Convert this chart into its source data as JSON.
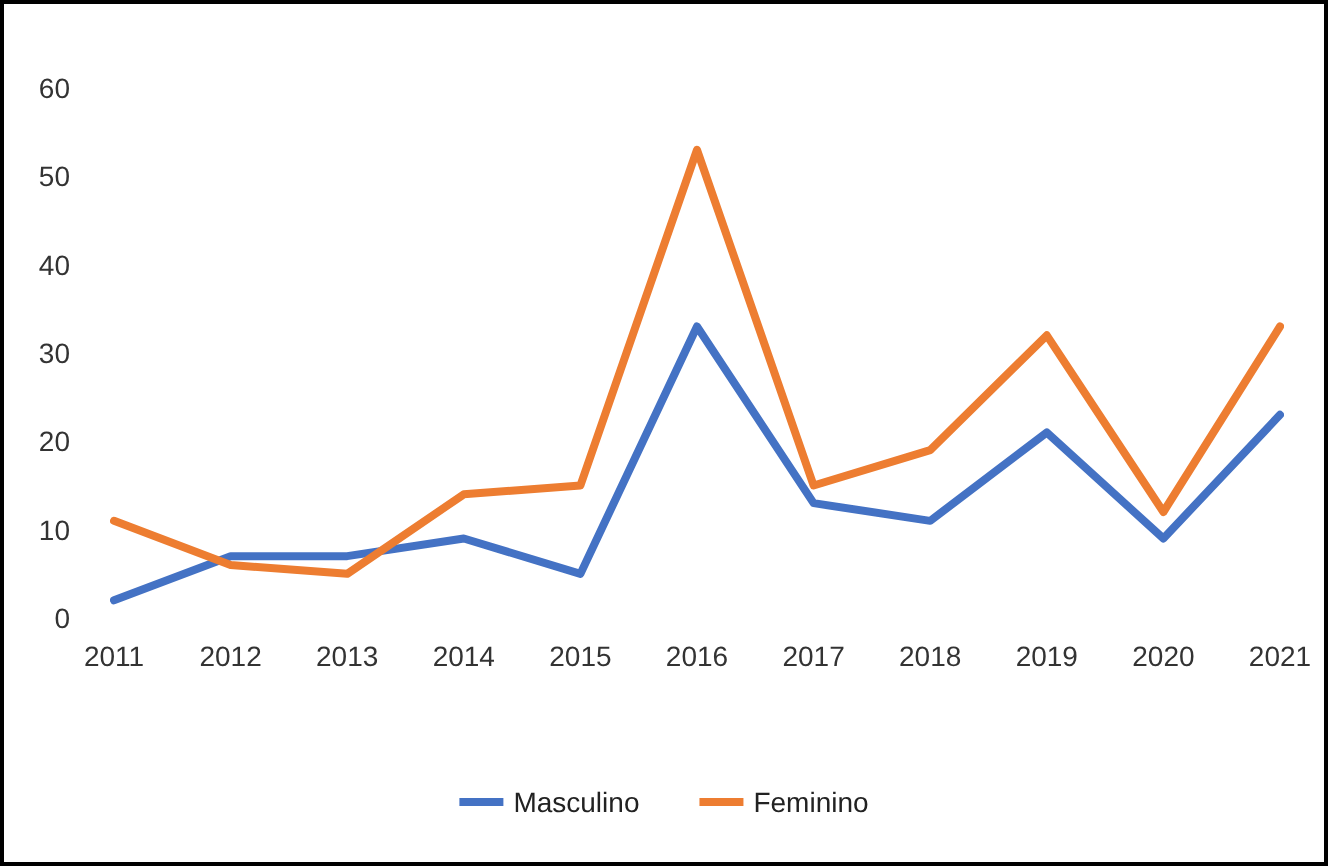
{
  "chart_data": {
    "type": "line",
    "categories": [
      "2011",
      "2012",
      "2013",
      "2014",
      "2015",
      "2016",
      "2017",
      "2018",
      "2019",
      "2020",
      "2021"
    ],
    "series": [
      {
        "name": "Masculino",
        "color": "#4472c4",
        "values": [
          2,
          7,
          7,
          9,
          5,
          33,
          13,
          11,
          21,
          9,
          23
        ]
      },
      {
        "name": "Feminino",
        "color": "#ed7d31",
        "values": [
          11,
          6,
          5,
          14,
          15,
          53,
          15,
          19,
          32,
          12,
          33
        ]
      }
    ],
    "ylim": [
      0,
      60
    ],
    "yticks": [
      0,
      10,
      20,
      30,
      40,
      50,
      60
    ],
    "grid": false,
    "legend": "bottom",
    "marker": "none",
    "line_style": "solid"
  }
}
